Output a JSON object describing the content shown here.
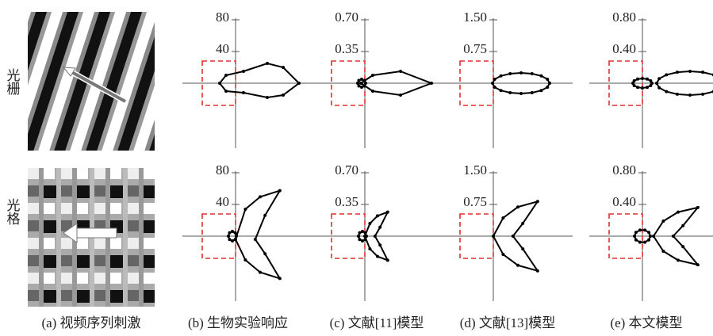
{
  "row_labels": [
    "光栅",
    "光格"
  ],
  "stimulus": {
    "caption": "(a) 视频序列刺激"
  },
  "panels": [
    {
      "caption": "(b) 生物实验响应",
      "ticks": [
        [
          "80",
          "40"
        ],
        [
          "80",
          "40"
        ]
      ]
    },
    {
      "caption": "(c) 文献[11]模型",
      "ticks": [
        [
          "0.70",
          "0.35"
        ],
        [
          "0.70",
          "0.35"
        ]
      ]
    },
    {
      "caption": "(d) 文献[13]模型",
      "ticks": [
        [
          "1.50",
          "0.75"
        ],
        [
          "1.50",
          "0.75"
        ]
      ]
    },
    {
      "caption": "(e) 本文模型",
      "ticks": [
        [
          "0.80",
          "0.40"
        ],
        [
          "0.80",
          "0.40"
        ]
      ]
    }
  ]
}
